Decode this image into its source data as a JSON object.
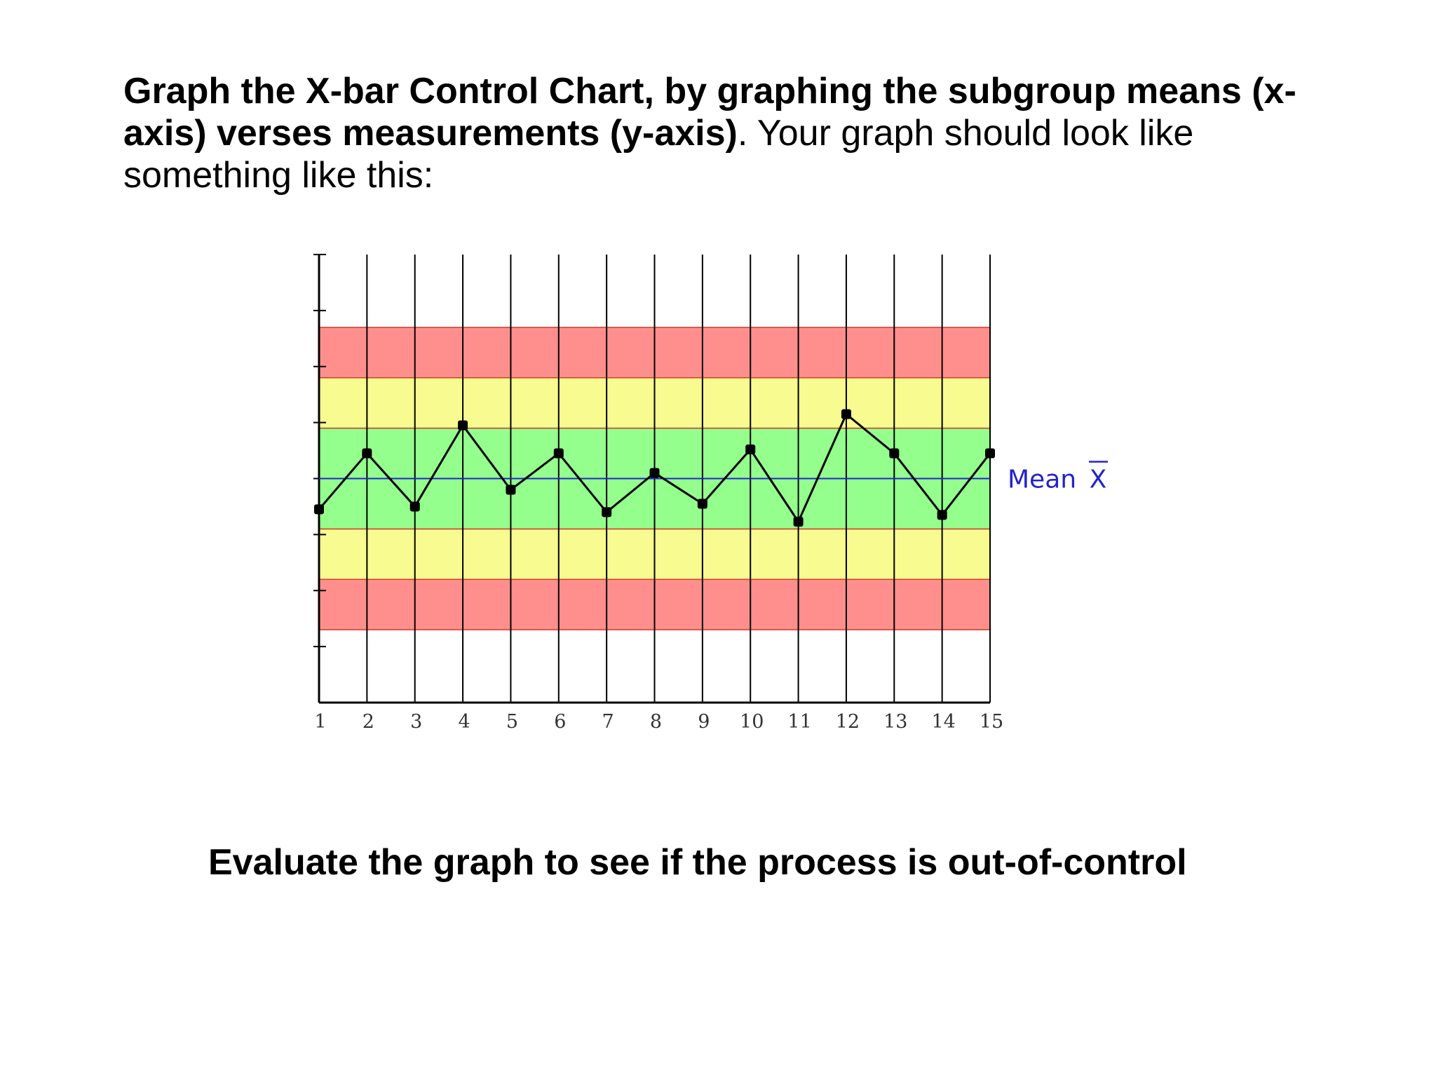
{
  "intro": {
    "bold": "Graph the X-bar Control Chart, by graphing the subgroup means (x-axis) verses measurements (y-axis)",
    "punct": ".",
    "regular": " Your graph should look like something like this:"
  },
  "conclusion": "Evaluate the graph to see if the process is out-of-control",
  "chart_data": {
    "type": "line",
    "title": "",
    "xlabel": "",
    "ylabel": "",
    "x": [
      1,
      2,
      3,
      4,
      5,
      6,
      7,
      8,
      9,
      10,
      11,
      12,
      13,
      14,
      15
    ],
    "xlim": [
      1,
      15
    ],
    "series": [
      {
        "values": [
          -0.55,
          0.45,
          -0.5,
          0.95,
          -0.2,
          0.45,
          -0.6,
          0.1,
          -0.45,
          0.52,
          -0.77,
          1.15,
          0.45,
          -0.65,
          0.45
        ]
      }
    ],
    "ylim": [
      -4,
      4
    ],
    "y_ticks": [
      -3,
      -2,
      -1,
      0,
      1,
      2,
      3,
      4
    ],
    "zones": [
      {
        "from": -2.7,
        "to": -1.8,
        "color": "#ff8f8c"
      },
      {
        "from": -1.8,
        "to": -0.9,
        "color": "#f8fb8f"
      },
      {
        "from": -0.9,
        "to": 0.9,
        "color": "#94ff8d"
      },
      {
        "from": 0.9,
        "to": 1.8,
        "color": "#f8fb8f"
      },
      {
        "from": 1.8,
        "to": 2.7,
        "color": "#ff8f8c"
      }
    ],
    "mean_value": 0,
    "mean_label": "Mean",
    "mean_symbol": "X",
    "mean_color": "#2323cc",
    "grid": true
  }
}
